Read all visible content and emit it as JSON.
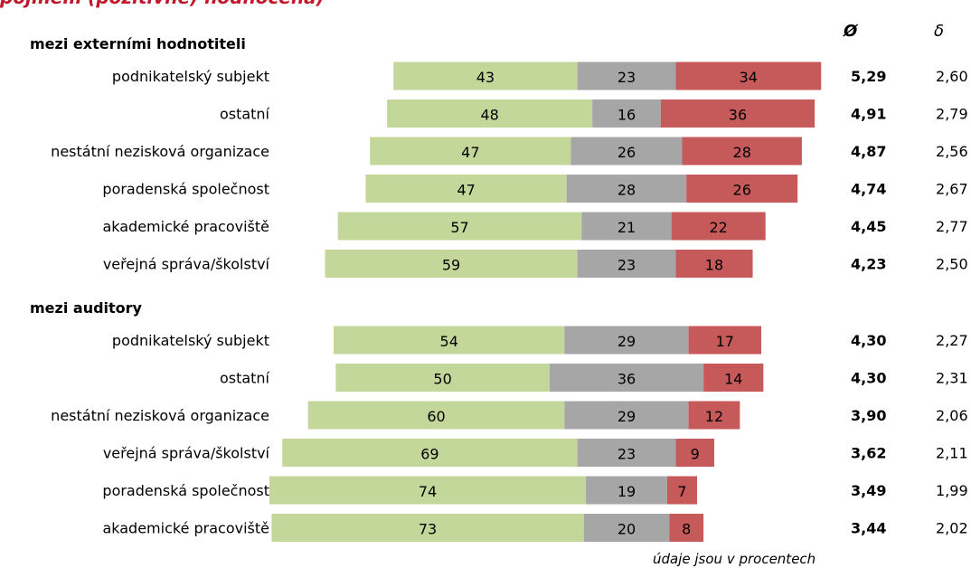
{
  "title": "pojmem (pozitivně) hodnocena)",
  "colors": {
    "positive": "#c4d79b",
    "neutral": "#a6a6a6",
    "negative": "#c65a5a",
    "title": "#c0172b"
  },
  "columns": {
    "mean": "Ø",
    "sd": "δ"
  },
  "note": "údaje jsou v procentech",
  "chart_data": {
    "type": "bar",
    "stacked": true,
    "orientation": "horizontal",
    "series": [
      {
        "name": "",
        "color": "#c4d79b"
      },
      {
        "name": "",
        "color": "#a6a6a6"
      },
      {
        "name": "",
        "color": "#c65a5a"
      }
    ],
    "groups": [
      {
        "label": "mezi externími hodnotiteli",
        "rows": [
          {
            "category": "podnikatelský subjekt",
            "values": [
              43,
              23,
              34
            ],
            "mean": "5,29",
            "sd": "2,60"
          },
          {
            "category": "ostatní",
            "values": [
              48,
              16,
              36
            ],
            "mean": "4,91",
            "sd": "2,79"
          },
          {
            "category": "nestátní nezisková organizace",
            "values": [
              47,
              26,
              28
            ],
            "mean": "4,87",
            "sd": "2,56"
          },
          {
            "category": "poradenská společnost",
            "values": [
              47,
              28,
              26
            ],
            "mean": "4,74",
            "sd": "2,67"
          },
          {
            "category": "akademické pracoviště",
            "values": [
              57,
              21,
              22
            ],
            "mean": "4,45",
            "sd": "2,77"
          },
          {
            "category": "veřejná správa/školství",
            "values": [
              59,
              23,
              18
            ],
            "mean": "4,23",
            "sd": "2,50"
          }
        ]
      },
      {
        "label": "mezi auditory",
        "rows": [
          {
            "category": "podnikatelský subjekt",
            "values": [
              54,
              29,
              17
            ],
            "mean": "4,30",
            "sd": "2,27"
          },
          {
            "category": "ostatní",
            "values": [
              50,
              36,
              14
            ],
            "mean": "4,30",
            "sd": "2,31"
          },
          {
            "category": "nestátní nezisková organizace",
            "values": [
              60,
              29,
              12
            ],
            "mean": "3,90",
            "sd": "2,06"
          },
          {
            "category": "veřejná správa/školství",
            "values": [
              69,
              23,
              9
            ],
            "mean": "3,62",
            "sd": "2,11"
          },
          {
            "category": "poradenská společnost",
            "values": [
              74,
              19,
              7
            ],
            "mean": "3,49",
            "sd": "1,99"
          },
          {
            "category": "akademické pracoviště",
            "values": [
              73,
              20,
              8
            ],
            "mean": "3,44",
            "sd": "2,02"
          }
        ]
      }
    ]
  }
}
